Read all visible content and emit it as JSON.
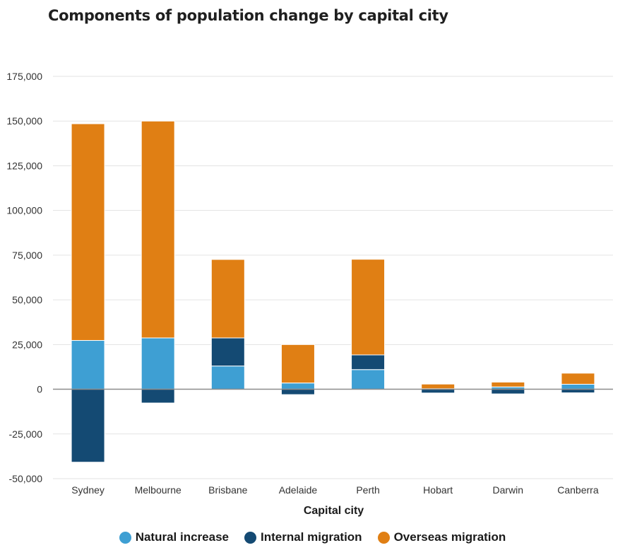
{
  "chart_data": {
    "type": "bar",
    "stacked": true,
    "title": "Components of population change by capital city",
    "xlabel": "Capital city",
    "ylabel": "",
    "ylim": [
      -50000,
      175000
    ],
    "yticks": [
      -50000,
      -25000,
      0,
      25000,
      50000,
      75000,
      100000,
      125000,
      150000,
      175000
    ],
    "ytick_labels": [
      "-50,000",
      "-25,000",
      "0",
      "25,000",
      "50,000",
      "75,000",
      "100,000",
      "125,000",
      "150,000",
      "175,000"
    ],
    "grid": true,
    "legend_position": "bottom-center",
    "categories": [
      "Sydney",
      "Melbourne",
      "Brisbane",
      "Adelaide",
      "Perth",
      "Hobart",
      "Darwin",
      "Canberra"
    ],
    "series": [
      {
        "name": "Natural increase",
        "color": "#3e9fd3",
        "values": [
          27300,
          28700,
          13000,
          3500,
          11000,
          300,
          1300,
          2800
        ]
      },
      {
        "name": "Internal migration",
        "color": "#144a73",
        "values": [
          -40800,
          -7700,
          15700,
          -3000,
          8200,
          -2100,
          -2600,
          -2000
        ]
      },
      {
        "name": "Overseas migration",
        "color": "#e07f14",
        "values": [
          121200,
          121300,
          43900,
          21500,
          53500,
          2600,
          2700,
          6200
        ]
      }
    ]
  }
}
